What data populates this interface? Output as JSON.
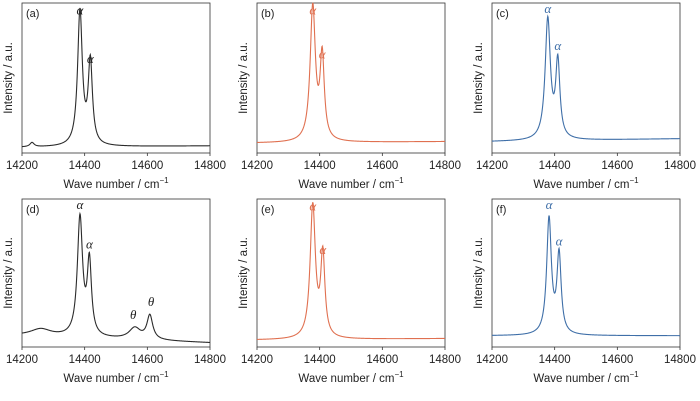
{
  "chart_data": [
    {
      "panel": "(a)",
      "type": "line",
      "color": "#2b2b2b",
      "xlabel": "Wave number / cm",
      "xlabel_sup": "−1",
      "ylabel": "Intensity / a.u.",
      "xlim": [
        14200,
        14800
      ],
      "ylim": [
        0,
        1.05
      ],
      "x_ticks": [
        "14200",
        "14400",
        "14600",
        "14800"
      ],
      "peaks": [
        {
          "x": 14385,
          "h": 0.94,
          "w": 9
        },
        {
          "x": 14418,
          "h": 0.58,
          "w": 8
        },
        {
          "x": 14232,
          "h": 0.03,
          "w": 8
        }
      ],
      "baseline": [
        0.04,
        0.05
      ],
      "annotations": [
        {
          "text": "α",
          "x": 14385,
          "y": 0.97
        },
        {
          "text": "α",
          "x": 14418,
          "y": 0.63
        }
      ]
    },
    {
      "panel": "(b)",
      "type": "line",
      "color": "#e07050",
      "xlabel": "Wave number / cm",
      "xlabel_sup": "−1",
      "ylabel": "Intensity / a.u.",
      "xlim": [
        14200,
        14800
      ],
      "ylim": [
        0,
        1.05
      ],
      "x_ticks": [
        "14200",
        "14400",
        "14600",
        "14800"
      ],
      "peaks": [
        {
          "x": 14378,
          "h": 0.94,
          "w": 10
        },
        {
          "x": 14408,
          "h": 0.58,
          "w": 8
        }
      ],
      "baseline": [
        0.07,
        0.08
      ],
      "annotations": [
        {
          "text": "α",
          "x": 14378,
          "y": 0.97
        },
        {
          "text": "α",
          "x": 14408,
          "y": 0.66
        }
      ]
    },
    {
      "panel": "(c)",
      "type": "line",
      "color": "#3f6fa8",
      "xlabel": "Wave number / cm",
      "xlabel_sup": "−1",
      "ylabel": "Intensity / a.u.",
      "xlim": [
        14200,
        14800
      ],
      "ylim": [
        0,
        1.05
      ],
      "x_ticks": [
        "14200",
        "14400",
        "14600",
        "14800"
      ],
      "peaks": [
        {
          "x": 14378,
          "h": 0.84,
          "w": 10
        },
        {
          "x": 14410,
          "h": 0.53,
          "w": 8
        }
      ],
      "baseline": [
        0.08,
        0.1
      ],
      "annotations": [
        {
          "text": "α",
          "x": 14378,
          "y": 0.98
        },
        {
          "text": "α",
          "x": 14410,
          "y": 0.72
        }
      ]
    },
    {
      "panel": "(d)",
      "type": "line",
      "color": "#2b2b2b",
      "xlabel": "Wave number / cm",
      "xlabel_sup": "−1",
      "ylabel": "Intensity / a.u.",
      "xlim": [
        14200,
        14800
      ],
      "ylim": [
        0,
        1.05
      ],
      "x_ticks": [
        "14200",
        "14400",
        "14600",
        "14800"
      ],
      "peaks": [
        {
          "x": 14385,
          "h": 0.84,
          "w": 10
        },
        {
          "x": 14415,
          "h": 0.52,
          "w": 8
        },
        {
          "x": 14560,
          "h": 0.08,
          "w": 22
        },
        {
          "x": 14608,
          "h": 0.17,
          "w": 11
        },
        {
          "x": 14260,
          "h": 0.05,
          "w": 40
        }
      ],
      "baseline": [
        0.08,
        0.03
      ],
      "annotations": [
        {
          "text": "α",
          "x": 14385,
          "y": 0.98
        },
        {
          "text": "α",
          "x": 14415,
          "y": 0.7
        },
        {
          "text": "θ",
          "x": 14555,
          "y": 0.2
        },
        {
          "text": "θ",
          "x": 14612,
          "y": 0.29
        }
      ]
    },
    {
      "panel": "(e)",
      "type": "line",
      "color": "#e07050",
      "xlabel": "Wave number / cm",
      "xlabel_sup": "−1",
      "ylabel": "Intensity / a.u.",
      "xlim": [
        14200,
        14800
      ],
      "ylim": [
        0,
        1.05
      ],
      "x_ticks": [
        "14200",
        "14400",
        "14600",
        "14800"
      ],
      "peaks": [
        {
          "x": 14378,
          "h": 0.94,
          "w": 10
        },
        {
          "x": 14410,
          "h": 0.58,
          "w": 8
        }
      ],
      "baseline": [
        0.05,
        0.06
      ],
      "annotations": [
        {
          "text": "α",
          "x": 14378,
          "y": 0.97
        },
        {
          "text": "α",
          "x": 14410,
          "y": 0.66
        }
      ]
    },
    {
      "panel": "(f)",
      "type": "line",
      "color": "#3f6fa8",
      "xlabel": "Wave number / cm",
      "xlabel_sup": "−1",
      "ylabel": "Intensity / a.u.",
      "xlim": [
        14200,
        14800
      ],
      "ylim": [
        0,
        1.05
      ],
      "x_ticks": [
        "14200",
        "14400",
        "14600",
        "14800"
      ],
      "peaks": [
        {
          "x": 14382,
          "h": 0.82,
          "w": 9
        },
        {
          "x": 14414,
          "h": 0.56,
          "w": 8
        }
      ],
      "baseline": [
        0.08,
        0.08
      ],
      "annotations": [
        {
          "text": "α",
          "x": 14382,
          "y": 0.98
        },
        {
          "text": "α",
          "x": 14414,
          "y": 0.72
        }
      ]
    }
  ]
}
